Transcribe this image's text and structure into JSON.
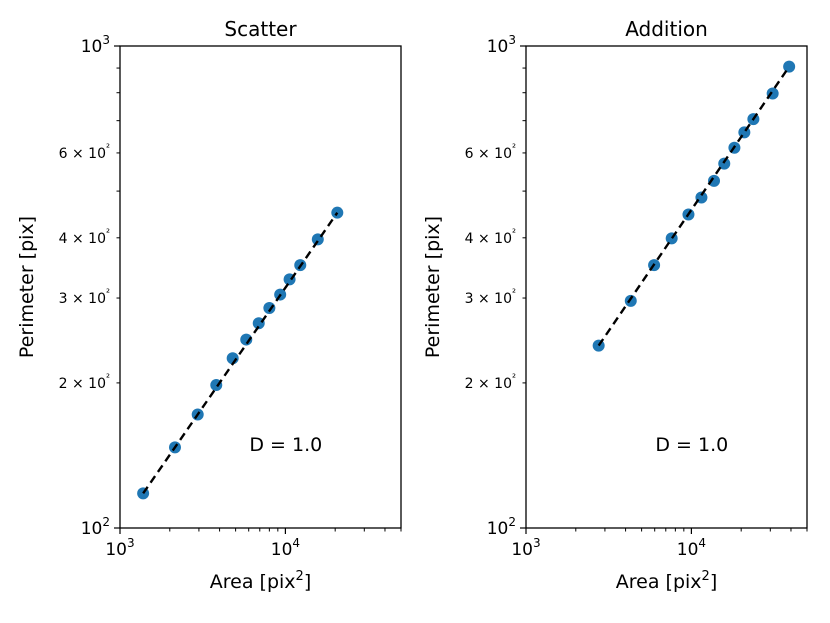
{
  "chart_data": [
    {
      "type": "scatter",
      "title": "Scatter",
      "xlabel": "Area [pix²]",
      "ylabel": "Perimeter [pix]",
      "xscale": "log",
      "yscale": "log",
      "xlim": [
        1000,
        50000
      ],
      "ylim": [
        100,
        1000
      ],
      "x_major_ticks": [
        {
          "value": 1000,
          "base": "10",
          "exp": "3"
        },
        {
          "value": 10000,
          "base": "10",
          "exp": "4"
        }
      ],
      "y_major_ticks": [
        {
          "value": 100,
          "base": "10",
          "exp": "2"
        },
        {
          "value": 1000,
          "base": "10",
          "exp": "3"
        }
      ],
      "y_minor_labeled": [
        {
          "value": 200,
          "label": "2 × 10²"
        },
        {
          "value": 300,
          "label": "3 × 10²"
        },
        {
          "value": 400,
          "label": "4 × 10²"
        },
        {
          "value": 600,
          "label": "6 × 10²"
        }
      ],
      "series": [
        {
          "x": [
            1380,
            2150,
            2950,
            3820,
            4800,
            5800,
            6900,
            8000,
            9300,
            10600,
            12300,
            15700,
            20600
          ],
          "y": [
            118,
            147,
            172,
            198,
            225,
            246,
            266,
            286,
            305,
            328,
            351,
            397,
            451
          ],
          "color": "#1f77b4",
          "marker": "circle"
        }
      ],
      "fit_line": {
        "x": [
          1380,
          20600
        ],
        "y": [
          118,
          451
        ],
        "color": "#000000",
        "style": "dashed"
      },
      "annotation": "D = 1.0",
      "grid": false
    },
    {
      "type": "scatter",
      "title": "Addition",
      "xlabel": "Area [pix²]",
      "ylabel": "Perimeter [pix]",
      "xscale": "log",
      "yscale": "log",
      "xlim": [
        1000,
        50000
      ],
      "ylim": [
        100,
        1000
      ],
      "x_major_ticks": [
        {
          "value": 1000,
          "base": "10",
          "exp": "3"
        },
        {
          "value": 10000,
          "base": "10",
          "exp": "4"
        }
      ],
      "y_major_ticks": [
        {
          "value": 100,
          "base": "10",
          "exp": "2"
        },
        {
          "value": 1000,
          "base": "10",
          "exp": "3"
        }
      ],
      "y_minor_labeled": [
        {
          "value": 200,
          "label": "2 × 10²"
        },
        {
          "value": 300,
          "label": "3 × 10²"
        },
        {
          "value": 400,
          "label": "4 × 10²"
        },
        {
          "value": 600,
          "label": "6 × 10²"
        }
      ],
      "series": [
        {
          "x": [
            2750,
            4300,
            5950,
            7600,
            9600,
            11500,
            13700,
            15800,
            18200,
            20900,
            23700,
            31000,
            39000
          ],
          "y": [
            239,
            296,
            351,
            399,
            447,
            485,
            525,
            570,
            615,
            662,
            705,
            797,
            906
          ],
          "color": "#1f77b4",
          "marker": "circle"
        }
      ],
      "fit_line": {
        "x": [
          2750,
          39000
        ],
        "y": [
          239,
          906
        ],
        "color": "#000000",
        "style": "dashed"
      },
      "annotation": "D = 1.0",
      "grid": false
    }
  ]
}
